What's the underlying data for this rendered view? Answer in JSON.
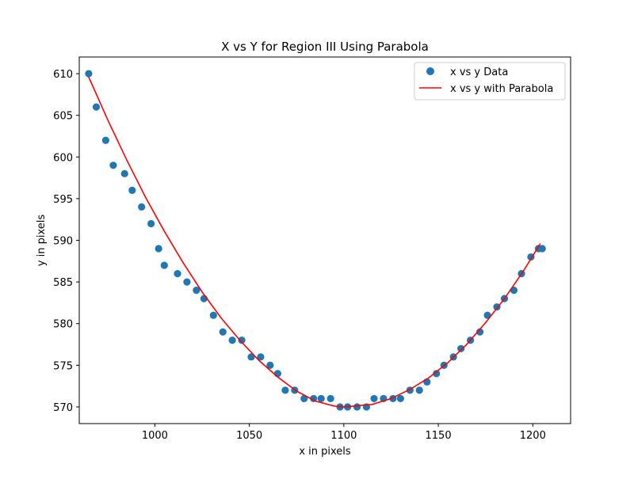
{
  "chart_data": {
    "type": "scatter",
    "title": "X vs Y for Region III Using Parabola",
    "xlabel": "x in pixels",
    "ylabel": "y in pixels",
    "xlim": [
      960,
      1220
    ],
    "ylim": [
      568,
      612
    ],
    "xticks": [
      1000,
      1050,
      1100,
      1150,
      1200
    ],
    "yticks": [
      570,
      575,
      580,
      585,
      590,
      595,
      600,
      605,
      610
    ],
    "grid": false,
    "legend_position": "top-right",
    "colors": {
      "points": "#1f77b4",
      "curve": "#ff0000"
    },
    "series": [
      {
        "name": "x vs y Data",
        "kind": "scatter",
        "x": [
          965,
          969,
          974,
          978,
          984,
          988,
          993,
          998,
          1002,
          1005,
          1012,
          1017,
          1022,
          1026,
          1031,
          1036,
          1041,
          1046,
          1051,
          1056,
          1061,
          1065,
          1069,
          1074,
          1079,
          1084,
          1088,
          1093,
          1098,
          1102,
          1107,
          1112,
          1116,
          1121,
          1126,
          1130,
          1135,
          1140,
          1144,
          1149,
          1153,
          1158,
          1162,
          1167,
          1172,
          1176,
          1181,
          1185,
          1190,
          1194,
          1199,
          1203,
          1205
        ],
        "y": [
          610,
          606,
          602,
          599,
          598,
          596,
          594,
          592,
          589,
          587,
          586,
          585,
          584,
          583,
          581,
          579,
          578,
          578,
          576,
          576,
          575,
          574,
          572,
          572,
          571,
          571,
          571,
          571,
          570,
          570,
          570,
          570,
          571,
          571,
          571,
          571,
          572,
          572,
          573,
          574,
          575,
          576,
          577,
          578,
          579,
          581,
          582,
          583,
          584,
          586,
          588,
          589,
          589
        ]
      },
      {
        "name": "x vs y with Parabola",
        "kind": "line",
        "x": [
          965,
          975,
          985,
          995,
          1005,
          1015,
          1025,
          1035,
          1045,
          1055,
          1065,
          1075,
          1085,
          1095,
          1100,
          1105,
          1115,
          1125,
          1135,
          1145,
          1155,
          1165,
          1175,
          1185,
          1195,
          1204
        ],
        "y": [
          609.6,
          604.5,
          599.7,
          595.2,
          591.1,
          587.3,
          583.8,
          580.7,
          578.0,
          575.6,
          573.6,
          571.9,
          570.7,
          570.1,
          570.0,
          570.1,
          570.3,
          571.0,
          572.1,
          573.5,
          575.3,
          577.5,
          580.1,
          583.0,
          586.3,
          589.6
        ]
      }
    ]
  }
}
